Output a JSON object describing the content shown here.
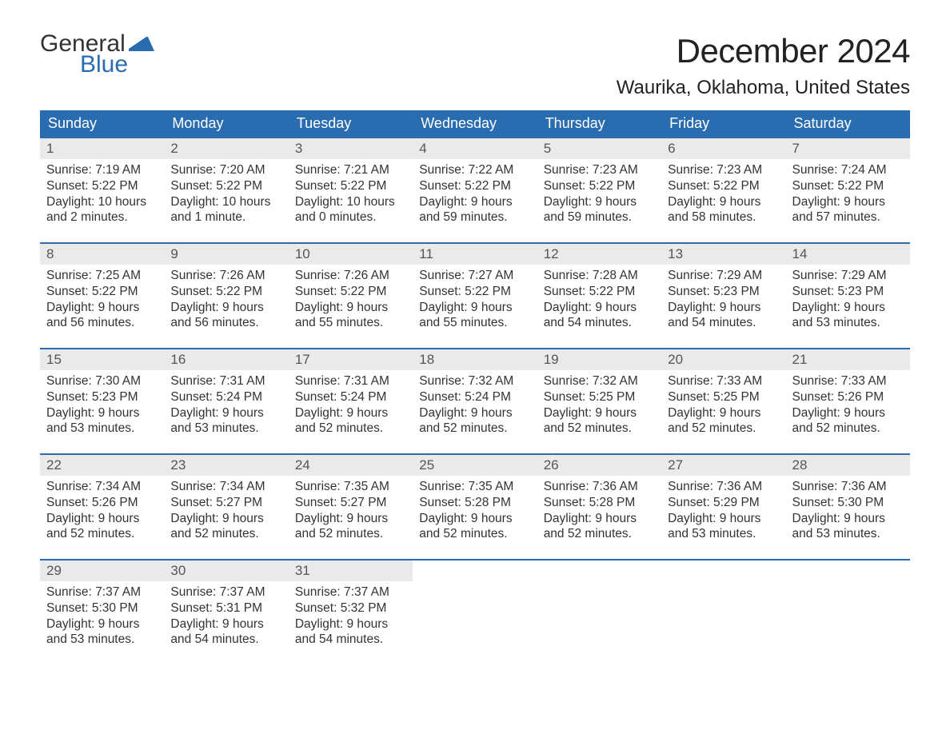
{
  "brand": {
    "word1": "General",
    "word2": "Blue",
    "flag_color": "#2a6cb0",
    "text_color_dark": "#333333",
    "text_color_blue": "#2a6cb0"
  },
  "title": "December 2024",
  "location": "Waurika, Oklahoma, United States",
  "colors": {
    "header_bg": "#2a6cb0",
    "header_text": "#ffffff",
    "row_divider": "#2a6cb0",
    "daynum_bg": "#eaeaea",
    "daynum_text": "#555555",
    "body_text": "#333333",
    "page_bg": "#ffffff"
  },
  "typography": {
    "title_fontsize": 42,
    "location_fontsize": 24,
    "dow_fontsize": 18,
    "daynum_fontsize": 17,
    "body_fontsize": 15.5
  },
  "days_of_week": [
    "Sunday",
    "Monday",
    "Tuesday",
    "Wednesday",
    "Thursday",
    "Friday",
    "Saturday"
  ],
  "labels": {
    "sunrise": "Sunrise:",
    "sunset": "Sunset:",
    "daylight": "Daylight:"
  },
  "weeks": [
    [
      {
        "n": "1",
        "sunrise": "7:19 AM",
        "sunset": "5:22 PM",
        "dl1": "10 hours",
        "dl2": "and 2 minutes."
      },
      {
        "n": "2",
        "sunrise": "7:20 AM",
        "sunset": "5:22 PM",
        "dl1": "10 hours",
        "dl2": "and 1 minute."
      },
      {
        "n": "3",
        "sunrise": "7:21 AM",
        "sunset": "5:22 PM",
        "dl1": "10 hours",
        "dl2": "and 0 minutes."
      },
      {
        "n": "4",
        "sunrise": "7:22 AM",
        "sunset": "5:22 PM",
        "dl1": "9 hours",
        "dl2": "and 59 minutes."
      },
      {
        "n": "5",
        "sunrise": "7:23 AM",
        "sunset": "5:22 PM",
        "dl1": "9 hours",
        "dl2": "and 59 minutes."
      },
      {
        "n": "6",
        "sunrise": "7:23 AM",
        "sunset": "5:22 PM",
        "dl1": "9 hours",
        "dl2": "and 58 minutes."
      },
      {
        "n": "7",
        "sunrise": "7:24 AM",
        "sunset": "5:22 PM",
        "dl1": "9 hours",
        "dl2": "and 57 minutes."
      }
    ],
    [
      {
        "n": "8",
        "sunrise": "7:25 AM",
        "sunset": "5:22 PM",
        "dl1": "9 hours",
        "dl2": "and 56 minutes."
      },
      {
        "n": "9",
        "sunrise": "7:26 AM",
        "sunset": "5:22 PM",
        "dl1": "9 hours",
        "dl2": "and 56 minutes."
      },
      {
        "n": "10",
        "sunrise": "7:26 AM",
        "sunset": "5:22 PM",
        "dl1": "9 hours",
        "dl2": "and 55 minutes."
      },
      {
        "n": "11",
        "sunrise": "7:27 AM",
        "sunset": "5:22 PM",
        "dl1": "9 hours",
        "dl2": "and 55 minutes."
      },
      {
        "n": "12",
        "sunrise": "7:28 AM",
        "sunset": "5:22 PM",
        "dl1": "9 hours",
        "dl2": "and 54 minutes."
      },
      {
        "n": "13",
        "sunrise": "7:29 AM",
        "sunset": "5:23 PM",
        "dl1": "9 hours",
        "dl2": "and 54 minutes."
      },
      {
        "n": "14",
        "sunrise": "7:29 AM",
        "sunset": "5:23 PM",
        "dl1": "9 hours",
        "dl2": "and 53 minutes."
      }
    ],
    [
      {
        "n": "15",
        "sunrise": "7:30 AM",
        "sunset": "5:23 PM",
        "dl1": "9 hours",
        "dl2": "and 53 minutes."
      },
      {
        "n": "16",
        "sunrise": "7:31 AM",
        "sunset": "5:24 PM",
        "dl1": "9 hours",
        "dl2": "and 53 minutes."
      },
      {
        "n": "17",
        "sunrise": "7:31 AM",
        "sunset": "5:24 PM",
        "dl1": "9 hours",
        "dl2": "and 52 minutes."
      },
      {
        "n": "18",
        "sunrise": "7:32 AM",
        "sunset": "5:24 PM",
        "dl1": "9 hours",
        "dl2": "and 52 minutes."
      },
      {
        "n": "19",
        "sunrise": "7:32 AM",
        "sunset": "5:25 PM",
        "dl1": "9 hours",
        "dl2": "and 52 minutes."
      },
      {
        "n": "20",
        "sunrise": "7:33 AM",
        "sunset": "5:25 PM",
        "dl1": "9 hours",
        "dl2": "and 52 minutes."
      },
      {
        "n": "21",
        "sunrise": "7:33 AM",
        "sunset": "5:26 PM",
        "dl1": "9 hours",
        "dl2": "and 52 minutes."
      }
    ],
    [
      {
        "n": "22",
        "sunrise": "7:34 AM",
        "sunset": "5:26 PM",
        "dl1": "9 hours",
        "dl2": "and 52 minutes."
      },
      {
        "n": "23",
        "sunrise": "7:34 AM",
        "sunset": "5:27 PM",
        "dl1": "9 hours",
        "dl2": "and 52 minutes."
      },
      {
        "n": "24",
        "sunrise": "7:35 AM",
        "sunset": "5:27 PM",
        "dl1": "9 hours",
        "dl2": "and 52 minutes."
      },
      {
        "n": "25",
        "sunrise": "7:35 AM",
        "sunset": "5:28 PM",
        "dl1": "9 hours",
        "dl2": "and 52 minutes."
      },
      {
        "n": "26",
        "sunrise": "7:36 AM",
        "sunset": "5:28 PM",
        "dl1": "9 hours",
        "dl2": "and 52 minutes."
      },
      {
        "n": "27",
        "sunrise": "7:36 AM",
        "sunset": "5:29 PM",
        "dl1": "9 hours",
        "dl2": "and 53 minutes."
      },
      {
        "n": "28",
        "sunrise": "7:36 AM",
        "sunset": "5:30 PM",
        "dl1": "9 hours",
        "dl2": "and 53 minutes."
      }
    ],
    [
      {
        "n": "29",
        "sunrise": "7:37 AM",
        "sunset": "5:30 PM",
        "dl1": "9 hours",
        "dl2": "and 53 minutes."
      },
      {
        "n": "30",
        "sunrise": "7:37 AM",
        "sunset": "5:31 PM",
        "dl1": "9 hours",
        "dl2": "and 54 minutes."
      },
      {
        "n": "31",
        "sunrise": "7:37 AM",
        "sunset": "5:32 PM",
        "dl1": "9 hours",
        "dl2": "and 54 minutes."
      },
      null,
      null,
      null,
      null
    ]
  ]
}
